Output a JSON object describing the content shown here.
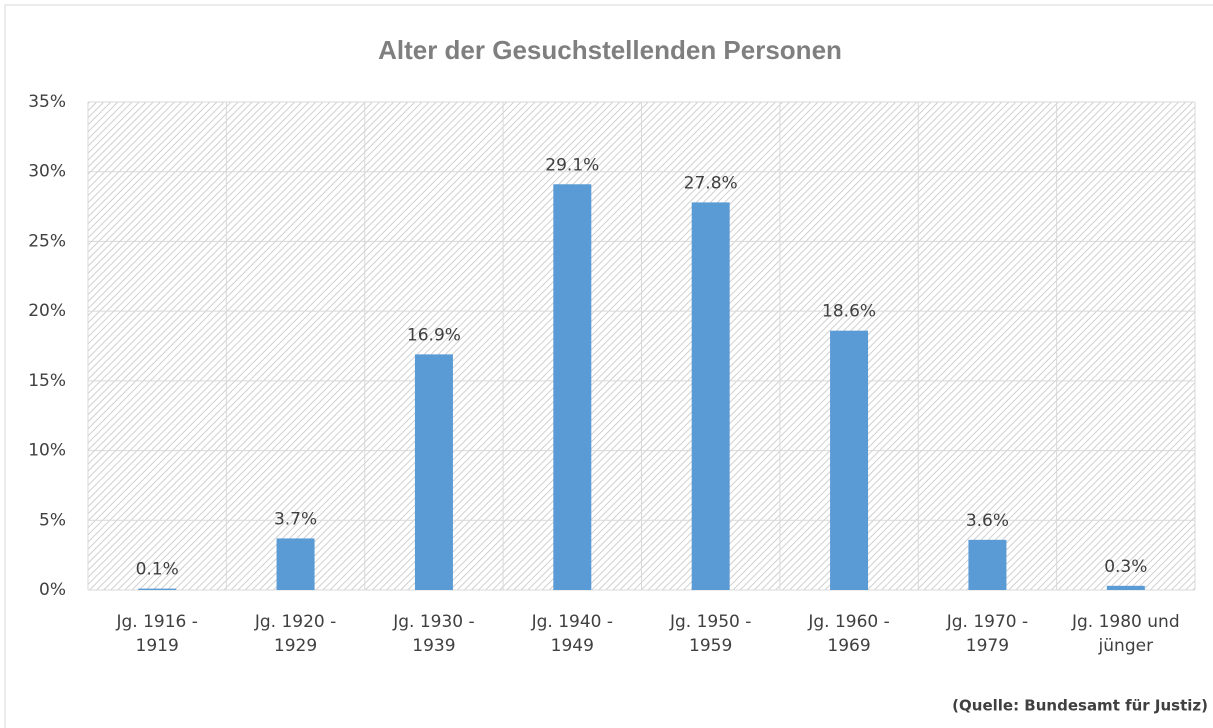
{
  "chart_data": {
    "type": "bar",
    "title": "Alter der Gesuchstellenden Personen",
    "categories": [
      "Jg. 1916 - 1919",
      "Jg. 1920 - 1929",
      "Jg. 1930 - 1939",
      "Jg. 1940 - 1949",
      "Jg. 1950 - 1959",
      "Jg. 1960 - 1969",
      "Jg. 1970 - 1979",
      "Jg. 1980 und jünger"
    ],
    "values": [
      0.1,
      3.7,
      16.9,
      29.1,
      27.8,
      18.6,
      3.6,
      0.3
    ],
    "value_labels": [
      "0.1%",
      "3.7%",
      "16.9%",
      "29.1%",
      "27.8%",
      "18.6%",
      "3.6%",
      "0.3%"
    ],
    "color": "#5b9bd5",
    "ylim": [
      0,
      35
    ],
    "yticks": [
      {
        "value": 0,
        "label": "0%"
      },
      {
        "value": 5,
        "label": "5%"
      },
      {
        "value": 10,
        "label": "10%"
      },
      {
        "value": 15,
        "label": "15%"
      },
      {
        "value": 20,
        "label": "20%"
      },
      {
        "value": 25,
        "label": "25%"
      },
      {
        "value": 30,
        "label": "30%"
      },
      {
        "value": 35,
        "label": "35%"
      }
    ],
    "grid": true,
    "source": "(Quelle: Bundesamt für Justiz)"
  }
}
